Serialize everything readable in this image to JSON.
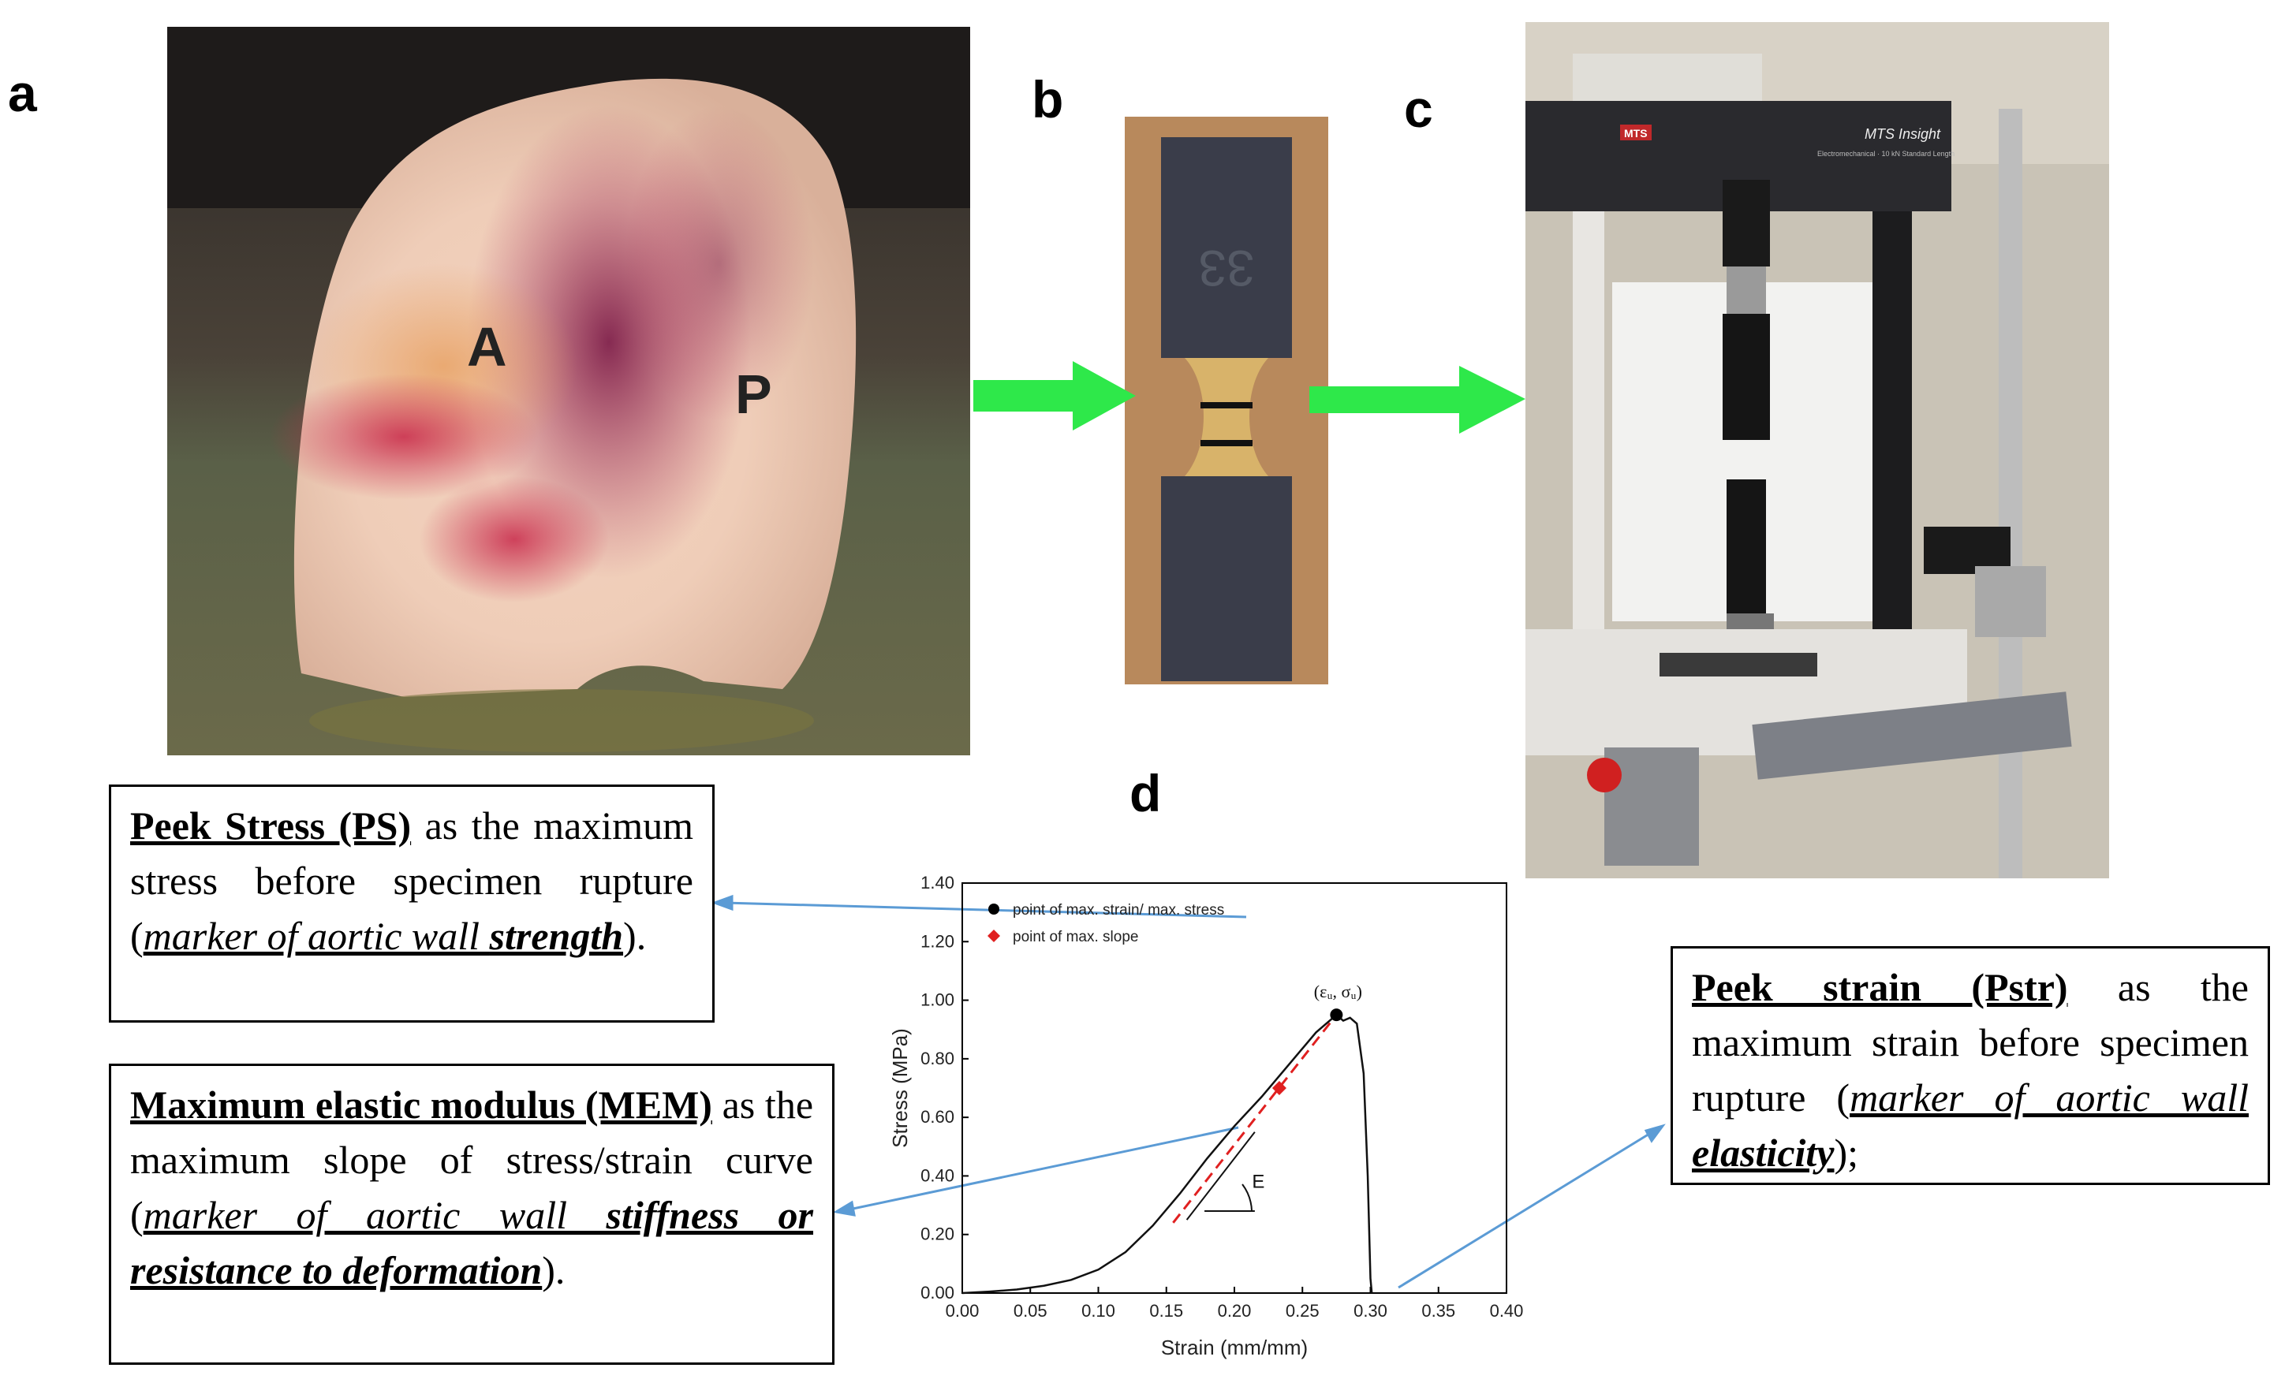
{
  "panels": {
    "a": "a",
    "b": "b",
    "c": "c",
    "d": "d"
  },
  "photo_a": {
    "label_anterior": "A",
    "label_posterior": "P"
  },
  "photo_b": {
    "specimen_id": "33"
  },
  "photo_c": {
    "machine_brand": "MTS",
    "machine_model": "MTS Insight",
    "machine_sub": "Electromechanical · 10 kN Standard Length"
  },
  "box_ps": {
    "title": "Peek Stress (PS)",
    "text1": "as the maximum stress before specimen rupture (",
    "marker": "marker of aortic wall ",
    "emph": "strength",
    "end": ")."
  },
  "box_mem": {
    "title": "Maximum elastic modulus (MEM)",
    "text1": "as the maximum slope of stress/strain curve (",
    "marker": "marker of aortic wall ",
    "emph": "stiffness or resistance to deformation",
    "end": ")."
  },
  "box_pstr": {
    "title": "Peek strain (Pstr)",
    "text1": "as the maximum strain before specimen rupture (",
    "marker": "marker of aortic wall ",
    "emph": "elasticity",
    "end": ");"
  },
  "chart_data": {
    "type": "line",
    "xlabel": "Strain (mm/mm)",
    "ylabel": "Stress (MPa)",
    "xlim": [
      0,
      0.4
    ],
    "ylim": [
      0,
      1.4
    ],
    "xticks": [
      "0.00",
      "0.05",
      "0.10",
      "0.15",
      "0.20",
      "0.25",
      "0.30",
      "0.35",
      "0.40"
    ],
    "yticks": [
      "0.00",
      "0.20",
      "0.40",
      "0.60",
      "0.80",
      "1.00",
      "1.20",
      "1.40"
    ],
    "legend": [
      {
        "label": "point of max. strain/ max. stress",
        "color": "#000000",
        "marker": "circle"
      },
      {
        "label": "point of max. slope",
        "color": "#e02020",
        "marker": "diamond"
      }
    ],
    "legend_position": "top-left",
    "curve": {
      "x": [
        0.0,
        0.02,
        0.04,
        0.06,
        0.08,
        0.1,
        0.12,
        0.14,
        0.16,
        0.18,
        0.2,
        0.22,
        0.24,
        0.26,
        0.27,
        0.275,
        0.28,
        0.285,
        0.29,
        0.295,
        0.298,
        0.3,
        0.301
      ],
      "y": [
        0.0,
        0.005,
        0.012,
        0.025,
        0.045,
        0.08,
        0.14,
        0.23,
        0.34,
        0.46,
        0.57,
        0.67,
        0.78,
        0.89,
        0.93,
        0.95,
        0.93,
        0.94,
        0.92,
        0.75,
        0.4,
        0.05,
        0.0
      ]
    },
    "max_point": {
      "x": 0.275,
      "y": 0.95,
      "label": "(εᵤ, σᵤ)"
    },
    "max_slope_point": {
      "x": 0.233,
      "y": 0.7
    },
    "tangent": {
      "x": [
        0.155,
        0.275
      ],
      "y": [
        0.24,
        0.95
      ]
    },
    "modulus_label": "E"
  }
}
